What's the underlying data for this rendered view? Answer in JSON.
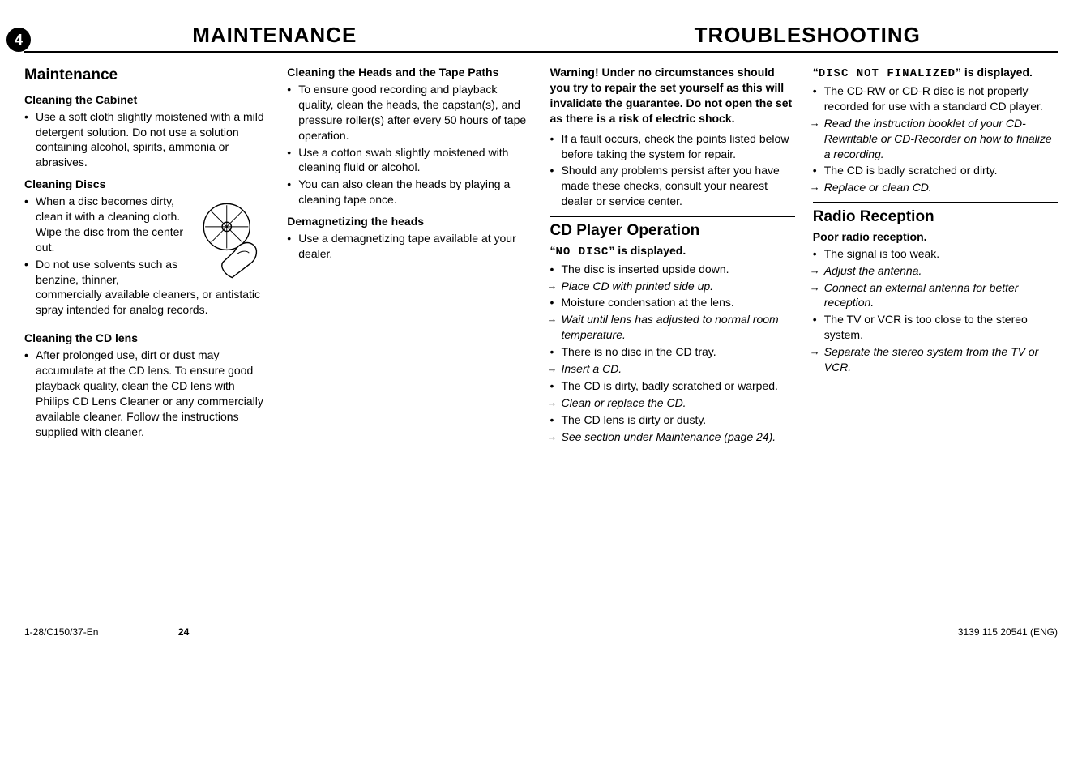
{
  "pageBadge": "4",
  "headerLeft": "MAINTENANCE",
  "headerRight": "TROUBLESHOOTING",
  "col1": {
    "title": "Maintenance",
    "cabinet": {
      "title": "Cleaning the Cabinet",
      "items": [
        {
          "t": "bullet",
          "text": "Use a soft cloth slightly moistened with a mild detergent solution. Do not use a solution containing alcohol, spirits, ammonia or abrasives."
        }
      ]
    },
    "discs": {
      "title": "Cleaning Discs",
      "items": [
        {
          "t": "bullet",
          "text": "When a disc becomes dirty, clean it with a cleaning cloth. Wipe the disc from the center out."
        },
        {
          "t": "bullet",
          "text": "Do not use solvents such as benzine, thinner, commercially available cleaners, or antistatic spray intended for analog records."
        }
      ]
    },
    "cdlens": {
      "title": "Cleaning the CD lens",
      "items": [
        {
          "t": "bullet",
          "text": "After prolonged use, dirt or dust may accumulate at the CD lens. To ensure good playback quality, clean the CD lens with Philips CD Lens Cleaner or any commercially available cleaner. Follow the instructions supplied with cleaner."
        }
      ]
    }
  },
  "col2": {
    "heads": {
      "title": "Cleaning the Heads and the Tape Paths",
      "items": [
        {
          "t": "bullet",
          "text": "To ensure good recording and playback quality, clean the heads, the capstan(s), and pressure roller(s) after every 50 hours of tape operation."
        },
        {
          "t": "bullet",
          "text": "Use a cotton swab slightly moistened with cleaning fluid or alcohol."
        },
        {
          "t": "bullet",
          "text": "You can also clean the heads by playing a cleaning tape once."
        }
      ]
    },
    "demag": {
      "title": "Demagnetizing the heads",
      "items": [
        {
          "t": "bullet",
          "text": "Use a demagnetizing tape available at your dealer."
        }
      ]
    }
  },
  "col3": {
    "warning": "Warning!  Under no circumstances should you try to repair the set yourself as this will invalidate the guarantee. Do not open the set as there is a risk of electric shock.",
    "warnItems": [
      {
        "t": "bullet",
        "text": "If a fault occurs, check the points listed below before taking the system for repair."
      },
      {
        "t": "bullet",
        "text": "Should any problems persist after you have made these checks, consult your nearest dealer or service center."
      }
    ],
    "cdop": {
      "title": "CD Player Operation",
      "issueLCD": "NO DISC",
      "issueSuffix": " is displayed.",
      "items": [
        {
          "t": "bullet",
          "text": "The disc is inserted upside down."
        },
        {
          "t": "arrow",
          "text": "Place CD with printed side up."
        },
        {
          "t": "bullet",
          "text": "Moisture condensation at the lens."
        },
        {
          "t": "arrow",
          "text": "Wait until lens has adjusted to normal room temperature."
        },
        {
          "t": "bullet",
          "text": "There is no disc in the CD tray."
        },
        {
          "t": "arrow",
          "text": "Insert a CD."
        },
        {
          "t": "bullet",
          "text": "The CD is dirty, badly scratched or warped."
        },
        {
          "t": "arrow",
          "text": "Clean or replace the CD."
        },
        {
          "t": "bullet",
          "text": "The CD lens is dirty or dusty."
        },
        {
          "t": "arrow",
          "text": "See section under Maintenance (page 24)."
        }
      ]
    }
  },
  "col4": {
    "finalize": {
      "issueLCD": "DISC NOT FINALIZED",
      "issueSuffix": " is displayed.",
      "items": [
        {
          "t": "bullet",
          "text": "The CD-RW or CD-R disc is not properly recorded for use with a standard CD player."
        },
        {
          "t": "arrow",
          "text": "Read the instruction booklet of your CD-Rewritable or CD-Recorder on how to finalize a recording."
        },
        {
          "t": "bullet",
          "text": "The CD is badly scratched or dirty."
        },
        {
          "t": "arrow",
          "text": "Replace or clean CD."
        }
      ]
    },
    "radio": {
      "title": "Radio Reception",
      "issue": "Poor radio reception.",
      "items": [
        {
          "t": "bullet",
          "text": "The signal is too weak."
        },
        {
          "t": "arrow",
          "text": "Adjust the antenna."
        },
        {
          "t": "arrow",
          "text": "Connect an external antenna for better reception."
        },
        {
          "t": "bullet",
          "text": "The TV or VCR is too close to the stereo system."
        },
        {
          "t": "arrow",
          "text": "Separate the stereo system from the TV or VCR."
        }
      ]
    }
  },
  "footer": {
    "left": "1-28/C150/37-En",
    "mid": "24",
    "right": "3139 115 20541 (ENG)"
  }
}
